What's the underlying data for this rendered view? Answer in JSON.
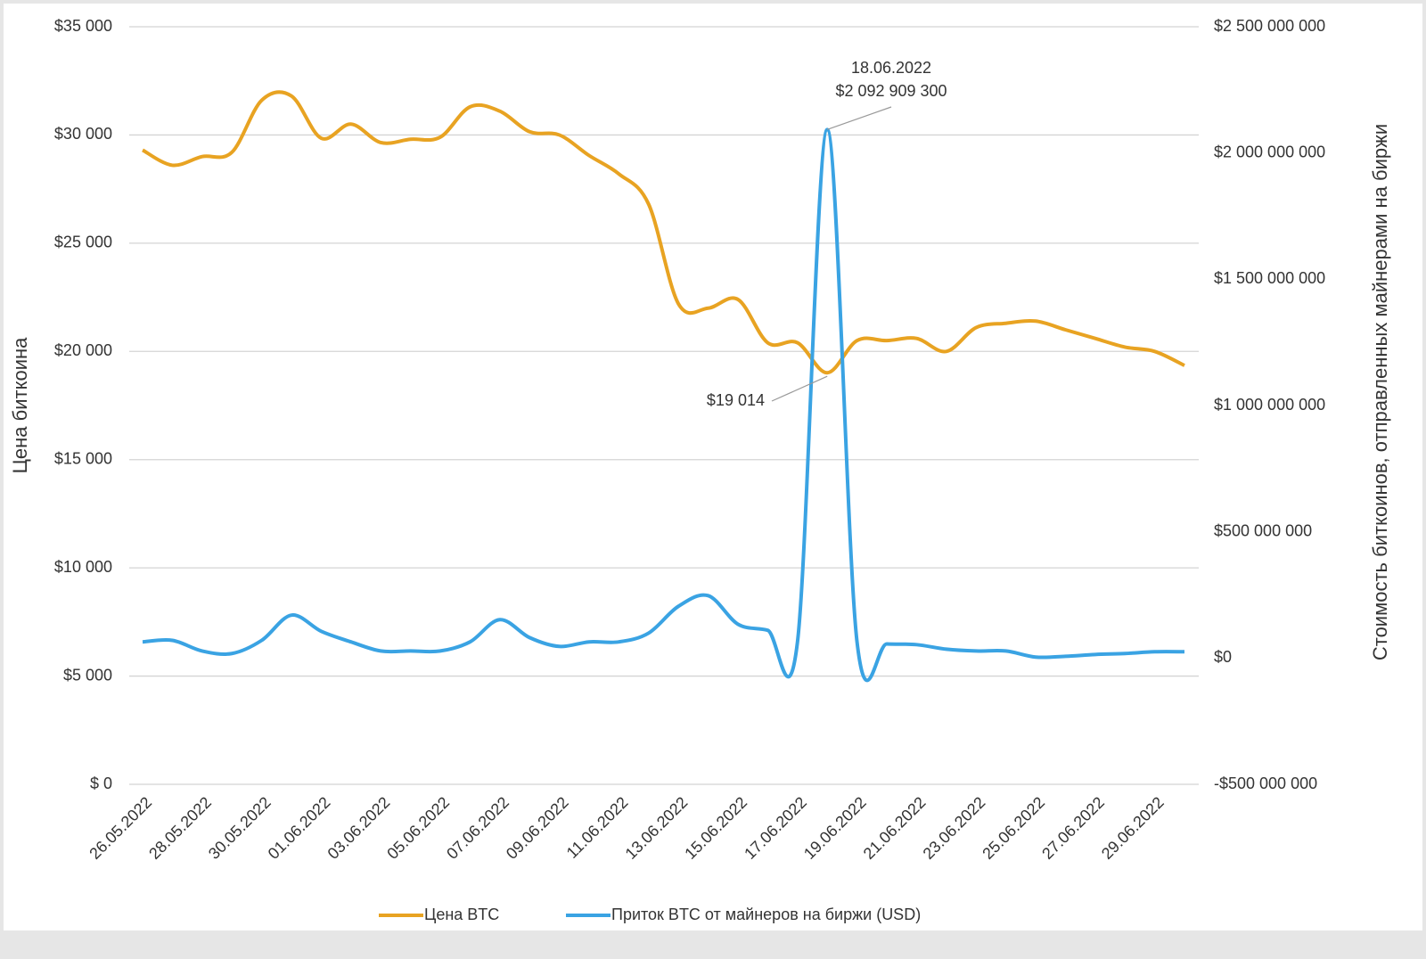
{
  "chart_data": {
    "type": "line",
    "categories": [
      "26.05.2022",
      null,
      "28.05.2022",
      null,
      "30.05.2022",
      null,
      "01.06.2022",
      null,
      "03.06.2022",
      null,
      "05.06.2022",
      null,
      "07.06.2022",
      null,
      "09.06.2022",
      null,
      "11.06.2022",
      null,
      "13.06.2022",
      null,
      "15.06.2022",
      null,
      "17.06.2022",
      null,
      "19.06.2022",
      null,
      "21.06.2022",
      null,
      "23.06.2022",
      null,
      "25.06.2022",
      null,
      "27.06.2022",
      null,
      "29.06.2022",
      null
    ],
    "y_label": "Цена биткоина",
    "y2_label": "Стоимость биткоинов, отправленных майнерами на биржи",
    "ylim": [
      0,
      35000
    ],
    "yticks": [
      {
        "value": 0,
        "label": "$ 0"
      },
      {
        "value": 5000,
        "label": "$5 000"
      },
      {
        "value": 10000,
        "label": "$10 000"
      },
      {
        "value": 15000,
        "label": "$15 000"
      },
      {
        "value": 20000,
        "label": "$20 000"
      },
      {
        "value": 25000,
        "label": "$25 000"
      },
      {
        "value": 30000,
        "label": "$30 000"
      },
      {
        "value": 35000,
        "label": "$35 000"
      }
    ],
    "y2lim": [
      -500000000,
      2500000000
    ],
    "y2ticks": [
      {
        "value": -500000000,
        "label": "-$500 000 000"
      },
      {
        "value": 0,
        "label": "$0"
      },
      {
        "value": 500000000,
        "label": "$500 000 000"
      },
      {
        "value": 1000000000,
        "label": "$1 000 000 000"
      },
      {
        "value": 1500000000,
        "label": "$1 500 000 000"
      },
      {
        "value": 2000000000,
        "label": "$2 000 000 000"
      },
      {
        "value": 2500000000,
        "label": "$2 500 000 000"
      }
    ],
    "grid": true,
    "legend": "bottom",
    "series": [
      {
        "name": "Цена BTC",
        "color": "#e8a322",
        "values": [
          29300,
          28600,
          29000,
          29200,
          31600,
          31800,
          29850,
          30500,
          29650,
          29800,
          29900,
          31300,
          31100,
          30150,
          30000,
          29050,
          28200,
          26800,
          22200,
          22000,
          22400,
          20400,
          20400,
          19014,
          20500,
          20500,
          20600,
          20000,
          21100,
          21300,
          21400,
          21000,
          20600,
          20200,
          20000,
          19350
        ]
      },
      {
        "name": "Приток BTC от майнеров на биржи (USD)",
        "color": "#3aa3e3",
        "axis": "y2",
        "values": [
          64000000,
          70000000,
          28000000,
          18000000,
          70000000,
          170000000,
          106000000,
          64000000,
          28000000,
          28000000,
          28000000,
          64000000,
          152000000,
          81000000,
          46000000,
          64000000,
          64000000,
          99000000,
          205000000,
          247000000,
          134000000,
          110000000,
          64000000,
          2092909300,
          64000000,
          56000000,
          53000000,
          35000000,
          28000000,
          28000000,
          4000000,
          7000000,
          14000000,
          18000000,
          25000000,
          25000000
        ]
      }
    ],
    "annotations": [
      {
        "lines": [
          "18.06.2022",
          "$2 092 909 300"
        ]
      },
      {
        "lines": [
          "$19 014"
        ]
      }
    ]
  }
}
